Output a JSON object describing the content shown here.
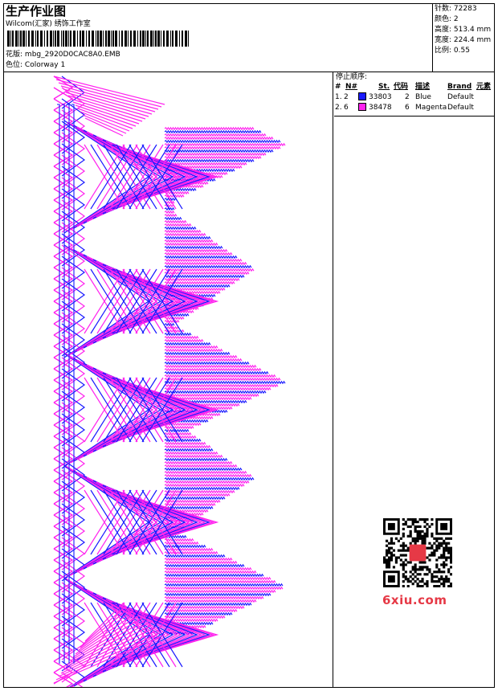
{
  "header": {
    "title": "生产作业图",
    "subtitle": "Wilcom(汇家) 绣饰工作室",
    "design_label": "花版:",
    "design_value": "mbg_2920D0CAC8A0.EMB",
    "colorway_label": "色位:",
    "colorway_value": "Colorway 1"
  },
  "stats": {
    "stitches_label": "针数:",
    "stitches_value": "72283",
    "colors_label": "颜色:",
    "colors_value": "2",
    "height_label": "高度:",
    "height_value": "513.4 mm",
    "width_label": "宽度:",
    "width_value": "224.4 mm",
    "scale_label": "比例:",
    "scale_value": "0.55"
  },
  "stop_sequence": {
    "title": "停止顺序:",
    "columns": {
      "num": "#",
      "needle": "N#",
      "st": "St.",
      "code": "代码",
      "desc": "描述",
      "brand": "Brand",
      "element": "元素"
    },
    "rows": [
      {
        "num": "1.",
        "needle": "2",
        "color": "#1a1aff",
        "st": "33803",
        "code": "2",
        "desc": "Blue",
        "brand": "Default"
      },
      {
        "num": "2.",
        "needle": "6",
        "color": "#ff22ee",
        "st": "38478",
        "code": "6",
        "desc": "Magenta",
        "brand": "Default"
      }
    ]
  },
  "colors": {
    "blue": "#1a1aff",
    "magenta": "#ff22ee"
  },
  "watermark": {
    "text": "6xiu.com",
    "icon": "qr-code-icon"
  }
}
